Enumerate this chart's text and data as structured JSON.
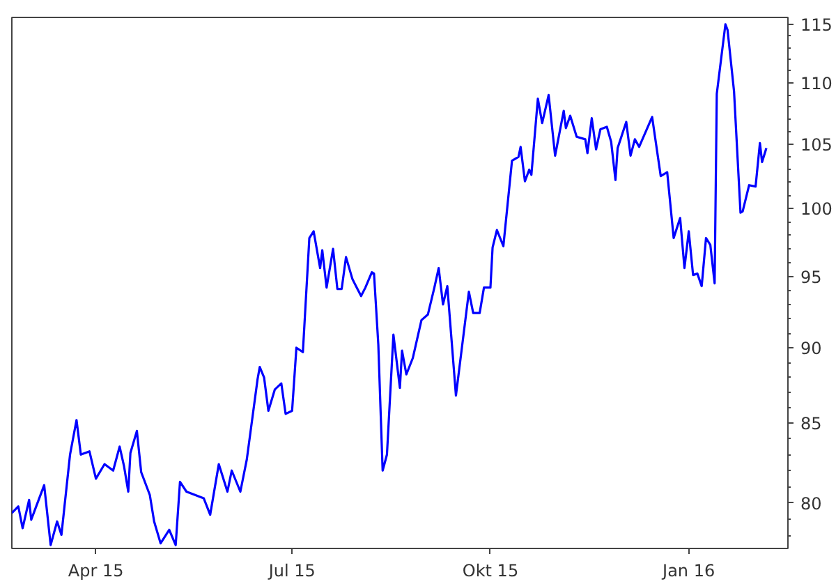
{
  "chart_data": {
    "type": "line",
    "x": [
      "2015-02-21",
      "2015-02-24",
      "2015-02-26",
      "2015-03-01",
      "2015-03-02",
      "2015-03-04",
      "2015-03-08",
      "2015-03-11",
      "2015-03-14",
      "2015-03-16",
      "2015-03-20",
      "2015-03-23",
      "2015-03-25",
      "2015-03-29",
      "2015-04-01",
      "2015-04-05",
      "2015-04-09",
      "2015-04-12",
      "2015-04-14",
      "2015-04-16",
      "2015-04-17",
      "2015-04-20",
      "2015-04-22",
      "2015-04-26",
      "2015-04-28",
      "2015-05-01",
      "2015-05-05",
      "2015-05-08",
      "2015-05-10",
      "2015-05-13",
      "2015-05-21",
      "2015-05-24",
      "2015-05-28",
      "2015-06-01",
      "2015-06-03",
      "2015-06-07",
      "2015-06-10",
      "2015-06-15",
      "2015-06-16",
      "2015-06-18",
      "2015-06-20",
      "2015-06-23",
      "2015-06-26",
      "2015-06-28",
      "2015-07-01",
      "2015-07-03",
      "2015-07-06",
      "2015-07-09",
      "2015-07-11",
      "2015-07-14",
      "2015-07-15",
      "2015-07-17",
      "2015-07-20",
      "2015-07-22",
      "2015-07-24",
      "2015-07-26",
      "2015-07-29",
      "2015-08-02",
      "2015-08-04",
      "2015-08-07",
      "2015-08-08",
      "2015-08-10",
      "2015-08-12",
      "2015-08-14",
      "2015-08-17",
      "2015-08-20",
      "2015-08-21",
      "2015-08-23",
      "2015-08-26",
      "2015-08-30",
      "2015-09-02",
      "2015-09-05",
      "2015-09-07",
      "2015-09-09",
      "2015-09-11",
      "2015-09-15",
      "2015-09-21",
      "2015-09-23",
      "2015-09-26",
      "2015-09-28",
      "2015-10-01",
      "2015-10-02",
      "2015-10-04",
      "2015-10-07",
      "2015-10-11",
      "2015-10-14",
      "2015-10-15",
      "2015-10-17",
      "2015-10-19",
      "2015-10-20",
      "2015-10-23",
      "2015-10-25",
      "2015-10-28",
      "2015-10-31",
      "2015-11-04",
      "2015-11-05",
      "2015-11-07",
      "2015-11-10",
      "2015-11-14",
      "2015-11-15",
      "2015-11-17",
      "2015-11-19",
      "2015-11-21",
      "2015-11-24",
      "2015-11-26",
      "2015-11-28",
      "2015-11-29",
      "2015-12-03",
      "2015-12-05",
      "2015-12-07",
      "2015-12-09",
      "2015-12-15",
      "2015-12-19",
      "2015-12-22",
      "2015-12-25",
      "2015-12-28",
      "2015-12-30",
      "2016-01-01",
      "2016-01-03",
      "2016-01-05",
      "2016-01-07",
      "2016-01-09",
      "2016-01-11",
      "2016-01-13",
      "2016-01-14",
      "2016-01-18",
      "2016-01-19",
      "2016-01-22",
      "2016-01-25",
      "2016-01-26",
      "2016-01-29",
      "2016-02-01",
      "2016-02-03",
      "2016-02-04",
      "2016-02-06"
    ],
    "series": [
      {
        "color": "#0000ff",
        "values": [
          79.4,
          79.8,
          78.5,
          80.2,
          79.0,
          79.7,
          81.1,
          77.5,
          78.9,
          78.1,
          83.0,
          85.2,
          83.0,
          83.2,
          81.5,
          82.4,
          82.0,
          83.5,
          82.3,
          80.7,
          83.1,
          84.5,
          81.9,
          80.5,
          78.9,
          77.6,
          78.4,
          77.5,
          81.3,
          80.7,
          80.3,
          79.3,
          82.4,
          80.7,
          82.0,
          80.7,
          82.7,
          87.9,
          88.7,
          88.0,
          85.8,
          87.2,
          87.6,
          85.6,
          85.8,
          90.0,
          89.7,
          97.8,
          98.3,
          95.6,
          96.9,
          94.2,
          97.0,
          94.1,
          94.1,
          96.4,
          94.8,
          93.6,
          94.2,
          95.3,
          95.2,
          90.2,
          82.0,
          83.0,
          90.9,
          87.3,
          89.8,
          88.2,
          89.3,
          91.9,
          92.3,
          94.2,
          95.6,
          93.0,
          94.3,
          86.8,
          93.9,
          92.4,
          92.4,
          94.2,
          94.2,
          97.1,
          98.4,
          97.2,
          103.7,
          104.0,
          104.8,
          102.1,
          103.0,
          102.6,
          108.7,
          106.7,
          109.0,
          104.1,
          107.7,
          106.3,
          107.3,
          105.6,
          105.4,
          104.3,
          107.1,
          104.6,
          106.2,
          106.4,
          105.2,
          102.2,
          104.7,
          106.8,
          104.1,
          105.4,
          104.8,
          107.2,
          102.5,
          102.8,
          97.8,
          99.3,
          95.6,
          98.3,
          95.1,
          95.2,
          94.3,
          97.8,
          97.3,
          94.5,
          109.1,
          115.0,
          114.5,
          109.3,
          99.7,
          99.8,
          101.8,
          101.7,
          105.1,
          103.6,
          104.7
        ]
      }
    ],
    "xlim": [
      "2015-02-21",
      "2016-02-16"
    ],
    "xticks": [
      {
        "value": "2015-04-01",
        "label": "Apr 15"
      },
      {
        "value": "2015-07-01",
        "label": "Jul 15"
      },
      {
        "value": "2015-10-01",
        "label": "Okt 15"
      },
      {
        "value": "2016-01-01",
        "label": "Jan 16"
      }
    ],
    "ylim": [
      77.3,
      115.6
    ],
    "yticks": [
      80,
      85,
      90,
      95,
      100,
      105,
      110,
      115
    ],
    "log": true,
    "grid": false,
    "marker": "none",
    "line_style": "solid"
  }
}
